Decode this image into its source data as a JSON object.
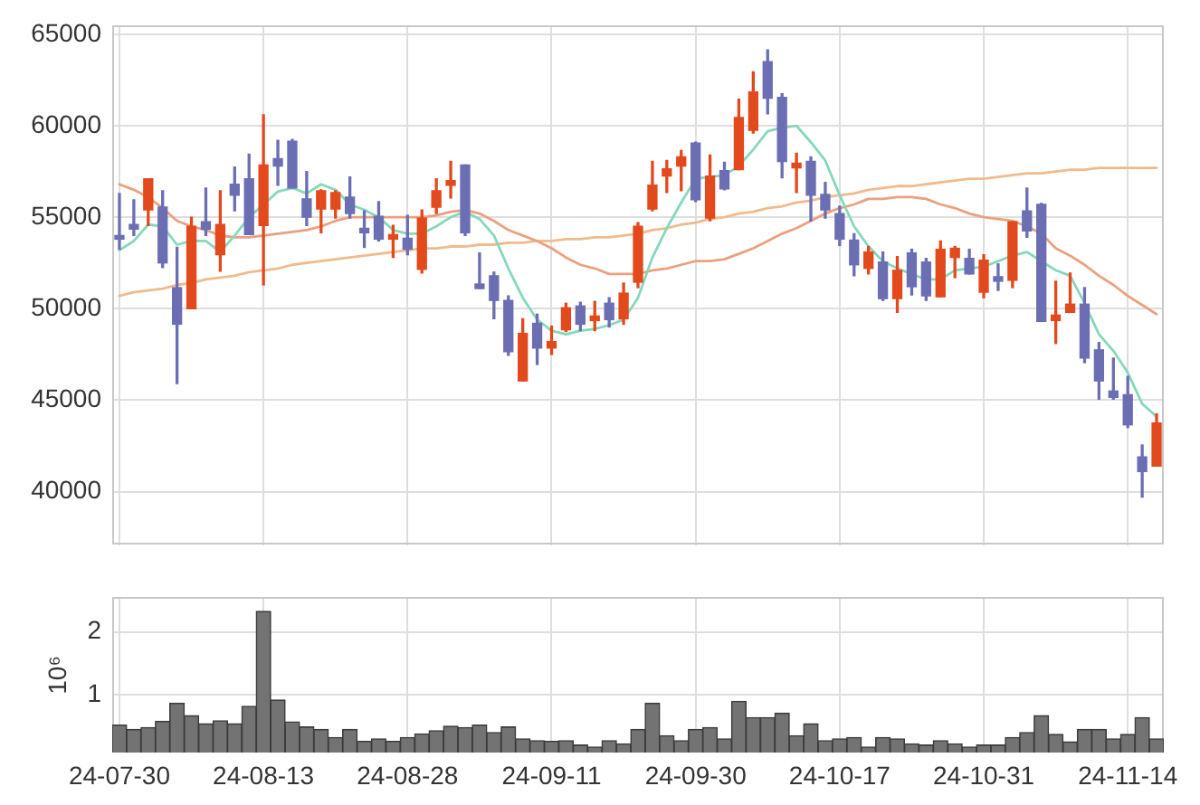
{
  "chart_data": [
    {
      "type": "candlestick",
      "categories": [
        null,
        null,
        null,
        null,
        null,
        null,
        null,
        null,
        null,
        null,
        null,
        null,
        null,
        null,
        null,
        null,
        null,
        null,
        null,
        null,
        null,
        null,
        null,
        null,
        null,
        null,
        null,
        null,
        null,
        null,
        null,
        null,
        null,
        null,
        null,
        null,
        null,
        null,
        null,
        null,
        null,
        null,
        null,
        null,
        null,
        null,
        null,
        null,
        null,
        null,
        null,
        null,
        null,
        null,
        null,
        null,
        null,
        null,
        null,
        null,
        null,
        null,
        null,
        null,
        null,
        null,
        null,
        null,
        null,
        null,
        null,
        null,
        null
      ],
      "ohlc": [
        [
          54000,
          56300,
          53250,
          53800
        ],
        [
          54600,
          55950,
          54000,
          54350
        ],
        [
          55400,
          57100,
          54550,
          57100
        ],
        [
          55550,
          56450,
          52250,
          52500
        ],
        [
          51150,
          53350,
          45900,
          49150
        ],
        [
          50000,
          55000,
          50000,
          54500
        ],
        [
          54750,
          56600,
          54000,
          54350
        ],
        [
          52950,
          56450,
          52050,
          54600
        ],
        [
          56800,
          57750,
          55350,
          56200
        ],
        [
          57100,
          58450,
          54050,
          54050
        ],
        [
          54550,
          60600,
          51300,
          57850
        ],
        [
          58200,
          59200,
          56750,
          57800
        ],
        [
          59150,
          59250,
          56600,
          56600
        ],
        [
          56000,
          57500,
          54550,
          55000
        ],
        [
          55450,
          56500,
          54150,
          56450
        ],
        [
          55450,
          56450,
          54950,
          56350
        ],
        [
          56100,
          57200,
          54950,
          55200
        ],
        [
          54400,
          55350,
          53350,
          54150
        ],
        [
          55050,
          55850,
          53700,
          53800
        ],
        [
          53800,
          54550,
          52800,
          54050
        ],
        [
          53850,
          55100,
          52950,
          53250
        ],
        [
          52150,
          55400,
          51950,
          54950
        ],
        [
          55550,
          57100,
          55200,
          56450
        ],
        [
          56750,
          58050,
          56050,
          57000
        ],
        [
          57850,
          57850,
          54000,
          54150
        ],
        [
          51350,
          53050,
          51100,
          51100
        ],
        [
          51800,
          52000,
          49450,
          50450
        ],
        [
          50450,
          50700,
          47450,
          47650
        ],
        [
          46050,
          49450,
          46050,
          48650
        ],
        [
          49200,
          49700,
          46950,
          47850
        ],
        [
          47850,
          49050,
          47500,
          48200
        ],
        [
          48850,
          50300,
          48750,
          50050
        ],
        [
          50150,
          50350,
          48800,
          49150
        ],
        [
          49350,
          50400,
          48800,
          49600
        ],
        [
          50300,
          50600,
          49000,
          49400
        ],
        [
          49450,
          51400,
          49150,
          50850
        ],
        [
          51450,
          54700,
          51150,
          54500
        ],
        [
          55450,
          58050,
          55350,
          56750
        ],
        [
          57250,
          58100,
          56350,
          57650
        ],
        [
          57800,
          58650,
          56450,
          58300
        ],
        [
          59050,
          59100,
          55850,
          55950
        ],
        [
          54950,
          58400,
          54800,
          57250
        ],
        [
          57550,
          58000,
          56500,
          56550
        ],
        [
          57600,
          61450,
          57600,
          60450
        ],
        [
          59750,
          62950,
          59600,
          61850
        ],
        [
          63500,
          64150,
          60650,
          61500
        ],
        [
          61550,
          61750,
          57150,
          58050
        ],
        [
          57700,
          58500,
          56350,
          57950
        ],
        [
          58050,
          58300,
          54800,
          56200
        ],
        [
          56250,
          56900,
          54950,
          55400
        ],
        [
          55200,
          55600,
          53450,
          53800
        ],
        [
          53750,
          54100,
          51800,
          52400
        ],
        [
          52200,
          53400,
          51900,
          53100
        ],
        [
          52550,
          53100,
          50450,
          50550
        ],
        [
          50550,
          52850,
          49800,
          52100
        ],
        [
          53050,
          53250,
          50750,
          51200
        ],
        [
          52550,
          52750,
          50450,
          50700
        ],
        [
          50650,
          53700,
          50650,
          53250
        ],
        [
          52800,
          53400,
          51700,
          53300
        ],
        [
          52750,
          53250,
          51900,
          51900
        ],
        [
          50900,
          52950,
          50600,
          52650
        ],
        [
          51750,
          52450,
          51000,
          51500
        ],
        [
          51550,
          54750,
          51150,
          54750
        ],
        [
          55350,
          56600,
          53900,
          54250
        ],
        [
          55700,
          55750,
          49300,
          49300
        ],
        [
          49350,
          51500,
          48100,
          49650
        ],
        [
          49800,
          51950,
          49800,
          50250
        ],
        [
          50250,
          51150,
          47050,
          47300
        ],
        [
          47750,
          48150,
          45050,
          46050
        ],
        [
          45500,
          47300,
          45050,
          45150
        ],
        [
          45300,
          46300,
          43500,
          43650
        ],
        [
          41900,
          42550,
          39700,
          41100
        ],
        [
          41400,
          44250,
          41400,
          43750
        ]
      ],
      "colors": [
        "#6b6eb3",
        "#6b6eb3",
        "#e2491c",
        "#6b6eb3",
        "#6b6eb3",
        "#e2491c",
        "#6b6eb3",
        "#e2491c",
        "#6b6eb3",
        "#6b6eb3",
        "#e2491c",
        "#6b6eb3",
        "#6b6eb3",
        "#6b6eb3",
        "#e2491c",
        "#e2491c",
        "#6b6eb3",
        "#6b6eb3",
        "#6b6eb3",
        "#e2491c",
        "#6b6eb3",
        "#e2491c",
        "#e2491c",
        "#e2491c",
        "#6b6eb3",
        "#6b6eb3",
        "#6b6eb3",
        "#6b6eb3",
        "#e2491c",
        "#6b6eb3",
        "#e2491c",
        "#e2491c",
        "#6b6eb3",
        "#e2491c",
        "#6b6eb3",
        "#e2491c",
        "#e2491c",
        "#e2491c",
        "#e2491c",
        "#e2491c",
        "#6b6eb3",
        "#e2491c",
        "#6b6eb3",
        "#e2491c",
        "#e2491c",
        "#6b6eb3",
        "#6b6eb3",
        "#e2491c",
        "#6b6eb3",
        "#6b6eb3",
        "#6b6eb3",
        "#6b6eb3",
        "#e2491c",
        "#6b6eb3",
        "#e2491c",
        "#6b6eb3",
        "#6b6eb3",
        "#e2491c",
        "#e2491c",
        "#6b6eb3",
        "#e2491c",
        "#6b6eb3",
        "#e2491c",
        "#6b6eb3",
        "#6b6eb3",
        "#e2491c",
        "#e2491c",
        "#6b6eb3",
        "#6b6eb3",
        "#6b6eb3",
        "#6b6eb3",
        "#6b6eb3",
        "#e2491c"
      ],
      "series": [
        {
          "type": "line",
          "color": "#86d8bb",
          "values": [
            53200,
            53700,
            54600,
            54500,
            53500,
            53700,
            53700,
            53100,
            54000,
            55000,
            55700,
            56400,
            56600,
            56300,
            56800,
            56500,
            55700,
            55400,
            55000,
            54300,
            54100,
            54100,
            54500,
            55000,
            55300,
            54900,
            54000,
            52200,
            50600,
            49400,
            48800,
            48600,
            48800,
            48900,
            49100,
            49400,
            50600,
            52800,
            54400,
            55800,
            57100,
            57200,
            57300,
            57800,
            58700,
            59700,
            59900,
            60000,
            59100,
            58100,
            56200,
            54500,
            53400,
            52600,
            52200,
            51900,
            51600,
            51600,
            52100,
            52200,
            52300,
            52600,
            52900,
            53100,
            52600,
            52100,
            51800,
            50300,
            48600,
            47700,
            46500,
            44800,
            44100
          ]
        },
        {
          "type": "line",
          "color": "#eba080",
          "values": [
            56800,
            56500,
            56100,
            55500,
            54800,
            54500,
            54300,
            54000,
            53900,
            53900,
            54000,
            54100,
            54200,
            54300,
            54500,
            54800,
            55000,
            55000,
            55000,
            55000,
            55000,
            55000,
            55100,
            55300,
            55400,
            55200,
            54800,
            54300,
            54000,
            53700,
            53300,
            52800,
            52400,
            52200,
            51900,
            51900,
            51900,
            52100,
            52200,
            52400,
            52600,
            52600,
            52700,
            53000,
            53300,
            53700,
            54100,
            54400,
            54800,
            55200,
            55500,
            55700,
            56000,
            56000,
            56100,
            56100,
            56000,
            55700,
            55500,
            55200,
            55000,
            54900,
            54800,
            54500,
            54100,
            53300,
            52900,
            52400,
            51800,
            51300,
            50700,
            50200,
            49700
          ]
        },
        {
          "type": "line",
          "color": "#f2ba8c",
          "values": [
            50700,
            50900,
            51000,
            51100,
            51300,
            51400,
            51600,
            51700,
            51800,
            52000,
            52100,
            52200,
            52400,
            52500,
            52600,
            52700,
            52800,
            52900,
            53000,
            53100,
            53200,
            53300,
            53300,
            53400,
            53400,
            53500,
            53500,
            53600,
            53600,
            53700,
            53700,
            53800,
            53800,
            53900,
            53900,
            54000,
            54100,
            54300,
            54400,
            54600,
            54700,
            54900,
            55000,
            55200,
            55300,
            55500,
            55600,
            55800,
            55900,
            56100,
            56200,
            56300,
            56500,
            56600,
            56700,
            56700,
            56800,
            56900,
            57000,
            57100,
            57100,
            57200,
            57300,
            57400,
            57400,
            57500,
            57600,
            57600,
            57700,
            57700,
            57700,
            57700,
            57700
          ]
        }
      ],
      "ylim": [
        37050,
        65450
      ],
      "yticks": [
        40000,
        45000,
        50000,
        55000,
        60000,
        65000
      ],
      "grid": true,
      "marker": "none"
    },
    {
      "type": "bar",
      "categories": [
        "24-07-30",
        null,
        null,
        null,
        null,
        null,
        null,
        null,
        null,
        null,
        "24-08-13",
        null,
        null,
        null,
        null,
        null,
        null,
        null,
        null,
        null,
        "24-08-28",
        null,
        null,
        null,
        null,
        null,
        null,
        null,
        null,
        null,
        "24-09-11",
        null,
        null,
        null,
        null,
        null,
        null,
        null,
        null,
        null,
        "24-09-30",
        null,
        null,
        null,
        null,
        null,
        null,
        null,
        null,
        null,
        "24-10-17",
        null,
        null,
        null,
        null,
        null,
        null,
        null,
        null,
        null,
        "24-10-31",
        null,
        null,
        null,
        null,
        null,
        null,
        null,
        null,
        null,
        "24-11-14",
        null,
        null
      ],
      "values": [
        0.51,
        0.44,
        0.47,
        0.57,
        0.86,
        0.66,
        0.53,
        0.58,
        0.53,
        0.81,
        2.33,
        0.91,
        0.56,
        0.48,
        0.44,
        0.31,
        0.44,
        0.25,
        0.29,
        0.25,
        0.31,
        0.37,
        0.42,
        0.49,
        0.47,
        0.51,
        0.39,
        0.48,
        0.29,
        0.26,
        0.25,
        0.26,
        0.19,
        0.16,
        0.26,
        0.21,
        0.44,
        0.86,
        0.34,
        0.26,
        0.44,
        0.47,
        0.29,
        0.89,
        0.63,
        0.63,
        0.7,
        0.34,
        0.53,
        0.26,
        0.29,
        0.31,
        0.16,
        0.31,
        0.29,
        0.21,
        0.19,
        0.26,
        0.21,
        0.16,
        0.19,
        0.19,
        0.31,
        0.39,
        0.66,
        0.36,
        0.24,
        0.44,
        0.44,
        0.29,
        0.36,
        0.63,
        0.29
      ],
      "color": "#737373",
      "ylabel": "10⁶",
      "ylim": [
        0.07,
        2.55
      ],
      "yticks": [
        1,
        2
      ],
      "grid": true
    }
  ]
}
